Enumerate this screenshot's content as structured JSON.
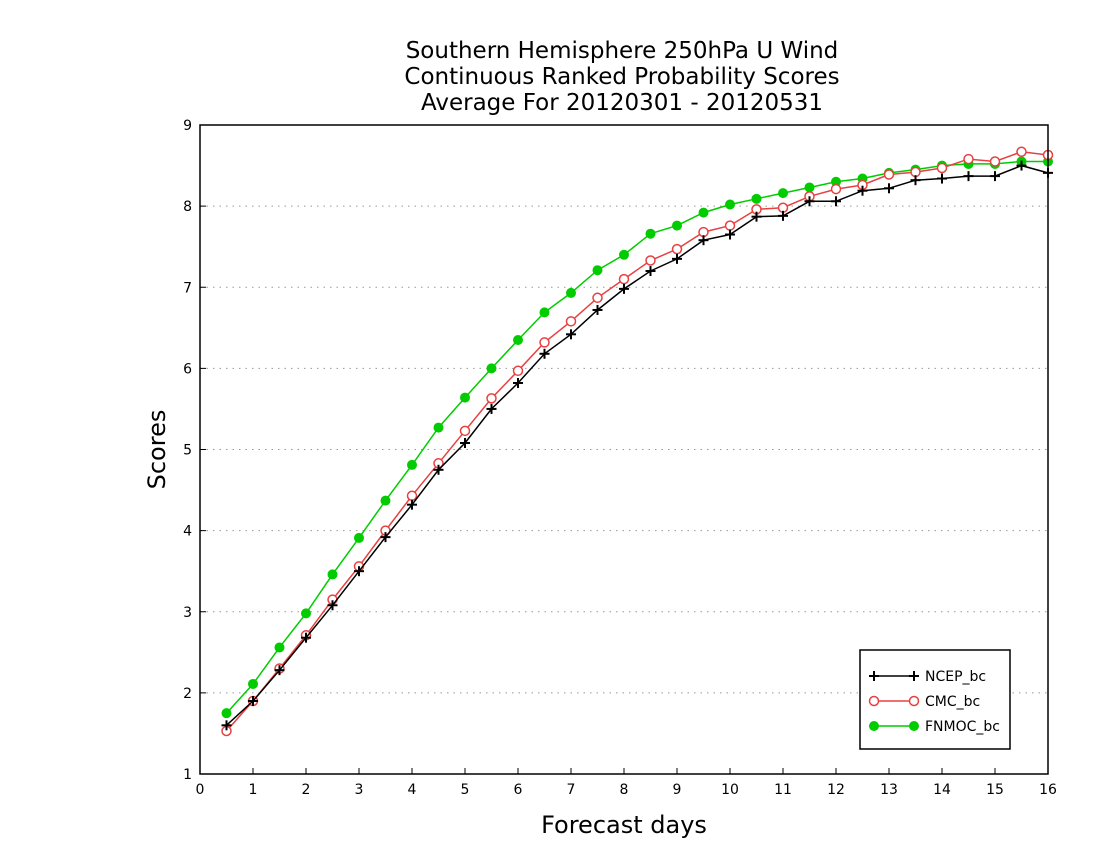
{
  "chart_data": {
    "type": "line",
    "title": [
      "Southern Hemisphere 250hPa U Wind",
      "Continuous Ranked Probability Scores",
      "Average For 20120301 - 20120531"
    ],
    "xlabel": "Forecast days",
    "ylabel": "Scores",
    "xlim": [
      0,
      16
    ],
    "ylim": [
      1,
      9
    ],
    "xticks": [
      "0",
      "1",
      "2",
      "3",
      "4",
      "5",
      "6",
      "7",
      "8",
      "9",
      "10",
      "11",
      "12",
      "13",
      "14",
      "15",
      "16"
    ],
    "yticks": [
      "1",
      "2",
      "3",
      "4",
      "5",
      "6",
      "7",
      "8",
      "9"
    ],
    "grid": "horizontal dotted",
    "legend_position": "bottom-right",
    "x": [
      0.5,
      1,
      1.5,
      2,
      2.5,
      3,
      3.5,
      4,
      4.5,
      5,
      5.5,
      6,
      6.5,
      7,
      7.5,
      8,
      8.5,
      9,
      9.5,
      10,
      10.5,
      11,
      11.5,
      12,
      12.5,
      13,
      13.5,
      14,
      14.5,
      15,
      15.5,
      16
    ],
    "series": [
      {
        "name": "NCEP_bc",
        "color": "#000000",
        "marker": "plus",
        "values": [
          1.6,
          1.9,
          2.28,
          2.68,
          3.08,
          3.5,
          3.92,
          4.32,
          4.75,
          5.08,
          5.5,
          5.82,
          6.18,
          6.42,
          6.72,
          6.98,
          7.2,
          7.35,
          7.58,
          7.65,
          7.87,
          7.88,
          8.06,
          8.06,
          8.19,
          8.22,
          8.32,
          8.34,
          8.37,
          8.37,
          8.5,
          8.41
        ]
      },
      {
        "name": "CMC_bc",
        "color": "#e84040",
        "marker": "open-circle",
        "values": [
          1.53,
          1.9,
          2.3,
          2.71,
          3.15,
          3.56,
          4.0,
          4.43,
          4.83,
          5.23,
          5.63,
          5.97,
          6.32,
          6.58,
          6.87,
          7.1,
          7.33,
          7.47,
          7.68,
          7.76,
          7.96,
          7.98,
          8.12,
          8.21,
          8.26,
          8.39,
          8.42,
          8.47,
          8.58,
          8.55,
          8.67,
          8.63
        ]
      },
      {
        "name": "FNMOC_bc",
        "color": "#00cc00",
        "marker": "filled-circle",
        "values": [
          1.75,
          2.11,
          2.56,
          2.98,
          3.46,
          3.91,
          4.37,
          4.81,
          5.27,
          5.64,
          6.0,
          6.35,
          6.69,
          6.93,
          7.21,
          7.4,
          7.66,
          7.76,
          7.92,
          8.02,
          8.09,
          8.16,
          8.23,
          8.3,
          8.34,
          8.41,
          8.45,
          8.5,
          8.52,
          8.52,
          8.55,
          8.55
        ]
      }
    ]
  }
}
